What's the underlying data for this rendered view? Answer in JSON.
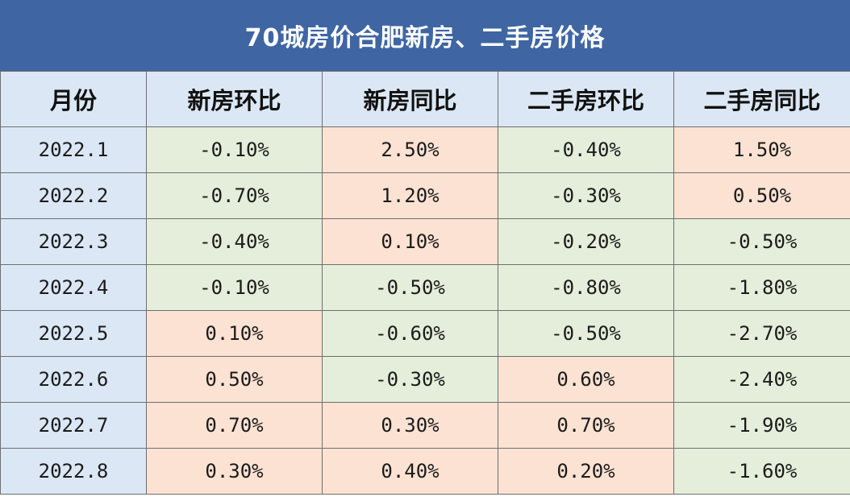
{
  "chart_data": {
    "type": "table",
    "title": "70城房价合肥新房、二手房价格",
    "columns": [
      "月份",
      "新房环比",
      "新房同比",
      "二手房环比",
      "二手房同比"
    ],
    "rows": [
      {
        "month": "2022.1",
        "cells": [
          "-0.10%",
          "2.50%",
          "-0.40%",
          "1.50%"
        ],
        "values": [
          -0.1,
          2.5,
          -0.4,
          1.5
        ]
      },
      {
        "month": "2022.2",
        "cells": [
          "-0.70%",
          "1.20%",
          "-0.30%",
          "0.50%"
        ],
        "values": [
          -0.7,
          1.2,
          -0.3,
          0.5
        ]
      },
      {
        "month": "2022.3",
        "cells": [
          "-0.40%",
          "0.10%",
          "-0.20%",
          "-0.50%"
        ],
        "values": [
          -0.4,
          0.1,
          -0.2,
          -0.5
        ]
      },
      {
        "month": "2022.4",
        "cells": [
          "-0.10%",
          "-0.50%",
          "-0.80%",
          "-1.80%"
        ],
        "values": [
          -0.1,
          -0.5,
          -0.8,
          -1.8
        ]
      },
      {
        "month": "2022.5",
        "cells": [
          "0.10%",
          "-0.60%",
          "-0.50%",
          "-2.70%"
        ],
        "values": [
          0.1,
          -0.6,
          -0.5,
          -2.7
        ]
      },
      {
        "month": "2022.6",
        "cells": [
          "0.50%",
          "-0.30%",
          "0.60%",
          "-2.40%"
        ],
        "values": [
          0.5,
          -0.3,
          0.6,
          -2.4
        ]
      },
      {
        "month": "2022.7",
        "cells": [
          "0.70%",
          "0.30%",
          "0.70%",
          "-1.90%"
        ],
        "values": [
          0.7,
          0.3,
          0.7,
          -1.9
        ]
      },
      {
        "month": "2022.8",
        "cells": [
          "0.30%",
          "0.40%",
          "0.20%",
          "-1.60%"
        ],
        "values": [
          0.3,
          0.4,
          0.2,
          -1.6
        ]
      }
    ]
  },
  "colors": {
    "title_bg": "#3f66a3",
    "header_bg": "#dbe7f4",
    "negative_bg": "#e4eedb",
    "positive_bg": "#fbe2d2"
  }
}
